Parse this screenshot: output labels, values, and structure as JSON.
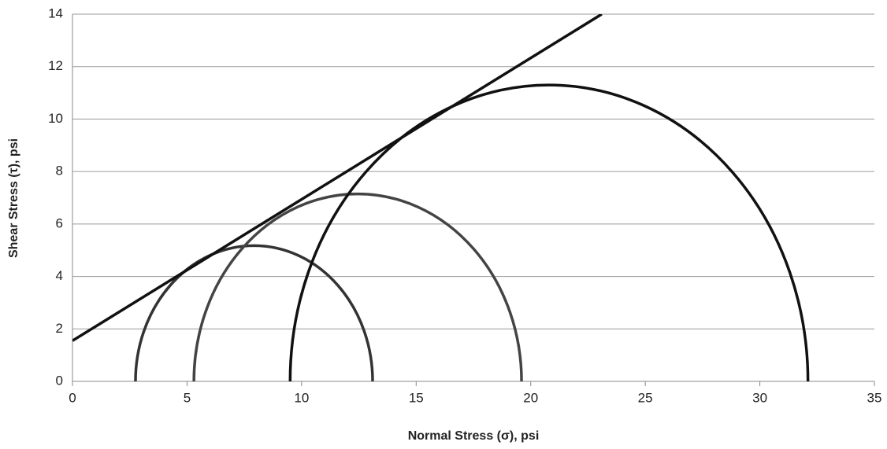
{
  "chart_data": {
    "type": "mohr",
    "xlabel": "Normal Stress (σ), psi",
    "ylabel": "Shear Stress (τ), psi",
    "xlim": [
      0,
      35
    ],
    "xticks": [
      0,
      5,
      10,
      15,
      20,
      25,
      30,
      35
    ],
    "ylim": [
      0,
      14
    ],
    "yticks": [
      0,
      2,
      4,
      6,
      8,
      10,
      12,
      14
    ],
    "grid": true,
    "circles": [
      {
        "color": "#333333",
        "values": [
          2.75,
          13.1
        ]
      },
      {
        "color": "#444444",
        "values": [
          5.3,
          19.6
        ]
      },
      {
        "color": "#111111",
        "values": [
          9.5,
          32.1
        ]
      }
    ],
    "envelope": {
      "color": "#111111",
      "x": [
        0,
        23.1
      ],
      "values": [
        1.55,
        14
      ]
    }
  }
}
